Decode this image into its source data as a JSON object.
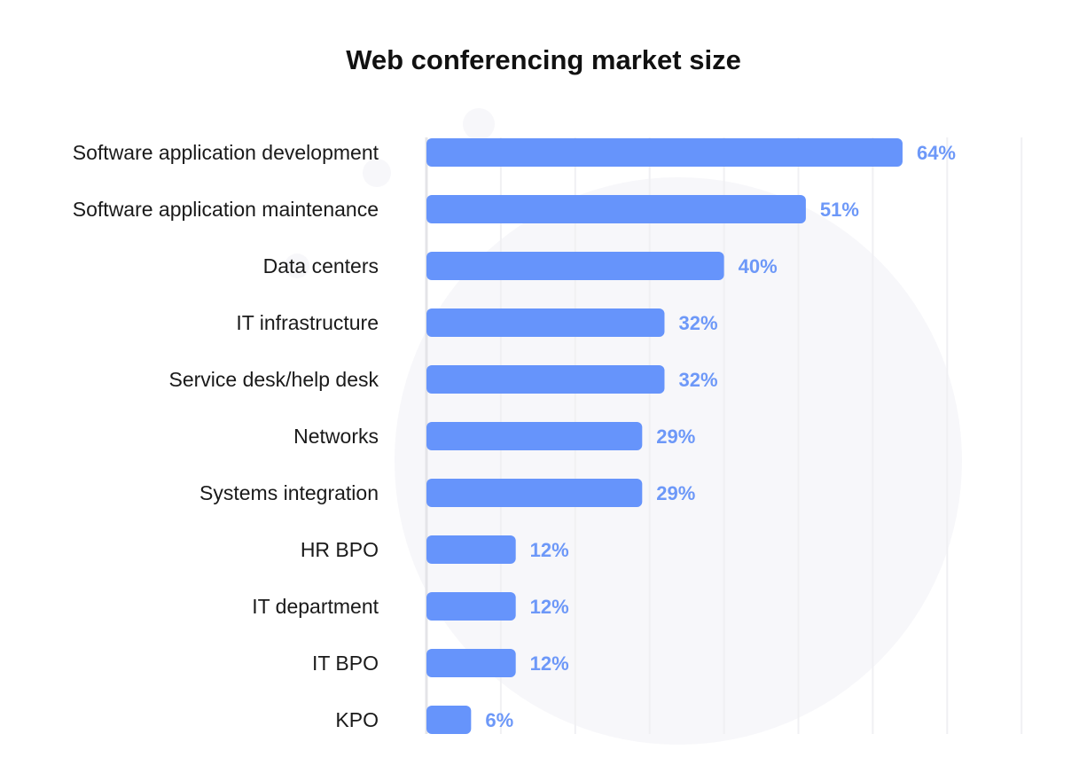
{
  "colors": {
    "bar": "#6694fb",
    "value_label": "#6d98f8",
    "grid": "#f0f0f3",
    "axis": "#e4e4e8",
    "watermark": "#f7f7fa"
  },
  "chart_data": {
    "type": "bar",
    "orientation": "horizontal",
    "title": "Web conferencing market size",
    "xlabel": "",
    "ylabel": "",
    "xlim": [
      0,
      80
    ],
    "grid": true,
    "legend": "none",
    "value_suffix": "%",
    "categories": [
      "Software application development",
      "Software application maintenance",
      "Data centers",
      "IT infrastructure",
      "Service desk/help desk",
      "Networks",
      "Systems integration",
      "HR BPO",
      "IT department",
      "IT BPO",
      "KPO"
    ],
    "values": [
      64,
      51,
      40,
      32,
      32,
      29,
      29,
      12,
      12,
      12,
      6
    ],
    "data_labels": [
      "64%",
      "51%",
      "40%",
      "32%",
      "32%",
      "29%",
      "29%",
      "12%",
      "12%",
      "12%",
      "6%"
    ]
  }
}
